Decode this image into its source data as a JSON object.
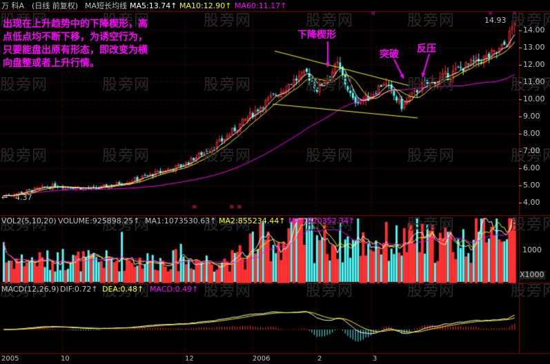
{
  "header": {
    "stock": "万 科A",
    "period": "(日线 前复权)",
    "ma_name": "MA短长均线",
    "ma5": "MA5:13.74↑",
    "ma10": "MA10:12.90↑",
    "ma60": "MA60:11.17↑"
  },
  "volume_header": {
    "name": "VOL2(5,10,20)",
    "volume": "VOLUME:925898.25↑",
    "ma1": "MA1:1073530.63↑",
    "ma2": "MA2:855234.44↑",
    "ma3": "MA3:620352.34↑"
  },
  "macd_header": {
    "name": "MACD(12,26,9)",
    "dif": "DIF:0.72↑",
    "dea": "DEA:0.48↑",
    "macd": "MACD:0.49↑"
  },
  "annotation": {
    "text_lines": [
      "出现在上升趋势中的下降楔形，高",
      "点低点均不断下移，为诱空行为，",
      "只要能盘出原有形态，即改变为横",
      "向盘整或者上升行情。"
    ],
    "wedge_label": "下降楔形",
    "breakout_label": "突破",
    "pullback_label": "反压"
  },
  "price_axis": [
    "14.00",
    "13.00",
    "12.00",
    "11.00",
    "10.00",
    "9.00",
    "8.00",
    "7.00",
    "6.00",
    "5.00",
    "4.00"
  ],
  "high_marker": "14.93",
  "low_marker": "4.37",
  "volume_axis": [
    "1000",
    "X1000"
  ],
  "time_axis": [
    "2005",
    "10",
    "12",
    "2006",
    "2",
    "3"
  ],
  "watermark": "股旁网",
  "colors": {
    "up": "#ff3232",
    "down": "#54fcfc",
    "ma5": "#ffffff",
    "ma10": "#ffff00",
    "ma60": "#ff00ff",
    "annotation": "#ff00ff",
    "wedge_line": "#ffff00",
    "grid": "#8b0000"
  },
  "chart_data": {
    "type": "candlestick",
    "price_range": [
      3.5,
      15.2
    ],
    "trend": "uptrend with descending wedge consolidation, breakout, pullback, continuation",
    "start_price": 4.37,
    "high_price": 14.93
  }
}
